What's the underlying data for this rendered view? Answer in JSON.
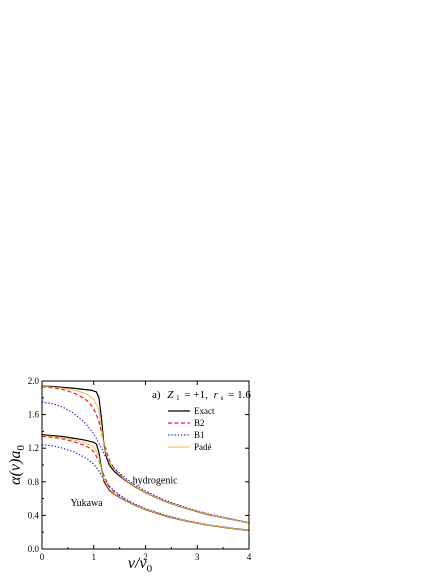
{
  "chart_data": {
    "type": "line",
    "panel_label": {
      "prefix": "a)",
      "z_symbol": "Z",
      "z_sub": "1",
      "z_value": "= +1,",
      "r_symbol": "r",
      "r_sub": "s",
      "r_value": "= 1.6"
    },
    "xlabel": {
      "main": "v/v",
      "sub": "0"
    },
    "ylabel": {
      "main": "α(v)a",
      "sub": "0"
    },
    "xlim": [
      0,
      4
    ],
    "ylim": [
      0.0,
      2.0
    ],
    "x_ticks": [
      0,
      1,
      2,
      3,
      4
    ],
    "x_tick_labels": [
      "0",
      "1",
      "2",
      "3",
      "4"
    ],
    "y_ticks": [
      0.0,
      0.4,
      0.8,
      1.2,
      1.6,
      2.0
    ],
    "y_tick_labels": [
      "0.0",
      "0.4",
      "0.8",
      "1.2",
      "1.6",
      "2.0"
    ],
    "legend": {
      "position": "right",
      "entries": [
        {
          "label": "Exact",
          "color": "#000000",
          "style": "solid"
        },
        {
          "label": "B2",
          "color": "#e8202a",
          "style": "dashed"
        },
        {
          "label": "B1",
          "color": "#2a2ad8",
          "style": "dotted"
        },
        {
          "label": "Padé",
          "color": "#e9b93c",
          "style": "solid"
        }
      ]
    },
    "annotations": [
      {
        "text": "hydrogenic",
        "x": 1.75,
        "y": 0.78
      },
      {
        "text": "Yukawa",
        "x": 0.55,
        "y": 0.51
      }
    ],
    "series": [
      {
        "group": "hydrogenic",
        "legend": "Exact",
        "color": "#000000",
        "style": "solid",
        "points": [
          [
            0,
            1.94
          ],
          [
            0.2,
            1.935
          ],
          [
            0.4,
            1.925
          ],
          [
            0.6,
            1.915
          ],
          [
            0.8,
            1.9
          ],
          [
            0.95,
            1.89
          ],
          [
            1.0,
            1.88
          ],
          [
            1.05,
            1.87
          ],
          [
            1.1,
            1.8
          ],
          [
            1.15,
            1.55
          ],
          [
            1.2,
            1.22
          ],
          [
            1.25,
            1.08
          ],
          [
            1.3,
            1.0
          ],
          [
            1.4,
            0.92
          ],
          [
            1.6,
            0.82
          ],
          [
            1.8,
            0.74
          ],
          [
            2.0,
            0.67
          ],
          [
            2.4,
            0.56
          ],
          [
            2.8,
            0.48
          ],
          [
            3.2,
            0.41
          ],
          [
            3.6,
            0.36
          ],
          [
            4.0,
            0.31
          ]
        ]
      },
      {
        "group": "hydrogenic",
        "legend": "B2",
        "color": "#e8202a",
        "style": "dashed",
        "points": [
          [
            0,
            1.93
          ],
          [
            0.2,
            1.92
          ],
          [
            0.4,
            1.9
          ],
          [
            0.6,
            1.86
          ],
          [
            0.8,
            1.8
          ],
          [
            0.9,
            1.75
          ],
          [
            1.0,
            1.67
          ],
          [
            1.1,
            1.52
          ],
          [
            1.2,
            1.25
          ],
          [
            1.3,
            1.06
          ],
          [
            1.4,
            0.95
          ],
          [
            1.6,
            0.83
          ],
          [
            1.8,
            0.745
          ],
          [
            2.0,
            0.675
          ],
          [
            2.4,
            0.565
          ],
          [
            2.8,
            0.485
          ],
          [
            3.2,
            0.415
          ],
          [
            3.6,
            0.36
          ],
          [
            4.0,
            0.31
          ]
        ]
      },
      {
        "group": "hydrogenic",
        "legend": "B1",
        "color": "#2a2ad8",
        "style": "dotted",
        "points": [
          [
            0,
            1.75
          ],
          [
            0.2,
            1.73
          ],
          [
            0.4,
            1.69
          ],
          [
            0.6,
            1.62
          ],
          [
            0.8,
            1.52
          ],
          [
            0.9,
            1.45
          ],
          [
            1.0,
            1.37
          ],
          [
            1.1,
            1.26
          ],
          [
            1.2,
            1.13
          ],
          [
            1.3,
            1.03
          ],
          [
            1.4,
            0.96
          ],
          [
            1.6,
            0.85
          ],
          [
            1.8,
            0.76
          ],
          [
            2.0,
            0.69
          ],
          [
            2.4,
            0.575
          ],
          [
            2.8,
            0.49
          ],
          [
            3.2,
            0.42
          ],
          [
            3.6,
            0.365
          ],
          [
            4.0,
            0.315
          ]
        ]
      },
      {
        "group": "hydrogenic",
        "legend": "Padé",
        "color": "#e9b93c",
        "style": "solid",
        "points": [
          [
            0,
            1.935
          ],
          [
            0.2,
            1.928
          ],
          [
            0.4,
            1.915
          ],
          [
            0.6,
            1.895
          ],
          [
            0.8,
            1.86
          ],
          [
            0.9,
            1.83
          ],
          [
            1.0,
            1.78
          ],
          [
            1.1,
            1.65
          ],
          [
            1.15,
            1.45
          ],
          [
            1.2,
            1.2
          ],
          [
            1.3,
            1.03
          ],
          [
            1.4,
            0.94
          ],
          [
            1.6,
            0.825
          ],
          [
            1.8,
            0.742
          ],
          [
            2.0,
            0.672
          ],
          [
            2.4,
            0.562
          ],
          [
            2.8,
            0.482
          ],
          [
            3.2,
            0.413
          ],
          [
            3.6,
            0.36
          ],
          [
            4.0,
            0.31
          ]
        ]
      },
      {
        "group": "Yukawa",
        "legend": "Exact",
        "color": "#000000",
        "style": "solid",
        "points": [
          [
            0,
            1.36
          ],
          [
            0.2,
            1.35
          ],
          [
            0.4,
            1.34
          ],
          [
            0.6,
            1.32
          ],
          [
            0.8,
            1.3
          ],
          [
            1.0,
            1.27
          ],
          [
            1.05,
            1.25
          ],
          [
            1.1,
            1.15
          ],
          [
            1.15,
            0.95
          ],
          [
            1.2,
            0.8
          ],
          [
            1.3,
            0.7
          ],
          [
            1.4,
            0.65
          ],
          [
            1.6,
            0.58
          ],
          [
            1.8,
            0.52
          ],
          [
            2.0,
            0.47
          ],
          [
            2.4,
            0.39
          ],
          [
            2.8,
            0.33
          ],
          [
            3.2,
            0.285
          ],
          [
            3.6,
            0.25
          ],
          [
            4.0,
            0.22
          ]
        ]
      },
      {
        "group": "Yukawa",
        "legend": "B2",
        "color": "#e8202a",
        "style": "dashed",
        "points": [
          [
            0,
            1.34
          ],
          [
            0.2,
            1.33
          ],
          [
            0.4,
            1.31
          ],
          [
            0.6,
            1.28
          ],
          [
            0.8,
            1.24
          ],
          [
            0.9,
            1.21
          ],
          [
            1.0,
            1.16
          ],
          [
            1.1,
            1.05
          ],
          [
            1.2,
            0.87
          ],
          [
            1.3,
            0.74
          ],
          [
            1.4,
            0.67
          ],
          [
            1.6,
            0.59
          ],
          [
            1.8,
            0.525
          ],
          [
            2.0,
            0.475
          ],
          [
            2.4,
            0.395
          ],
          [
            2.8,
            0.333
          ],
          [
            3.2,
            0.287
          ],
          [
            3.6,
            0.252
          ],
          [
            4.0,
            0.222
          ]
        ]
      },
      {
        "group": "Yukawa",
        "legend": "B1",
        "color": "#2a2ad8",
        "style": "dotted",
        "points": [
          [
            0,
            1.24
          ],
          [
            0.2,
            1.23
          ],
          [
            0.4,
            1.2
          ],
          [
            0.6,
            1.16
          ],
          [
            0.8,
            1.1
          ],
          [
            0.9,
            1.06
          ],
          [
            1.0,
            1.01
          ],
          [
            1.1,
            0.93
          ],
          [
            1.2,
            0.83
          ],
          [
            1.3,
            0.75
          ],
          [
            1.4,
            0.69
          ],
          [
            1.6,
            0.6
          ],
          [
            1.8,
            0.535
          ],
          [
            2.0,
            0.48
          ],
          [
            2.4,
            0.4
          ],
          [
            2.8,
            0.337
          ],
          [
            3.2,
            0.29
          ],
          [
            3.6,
            0.254
          ],
          [
            4.0,
            0.224
          ]
        ]
      },
      {
        "group": "Yukawa",
        "legend": "Padé",
        "color": "#e9b93c",
        "style": "solid",
        "points": [
          [
            0,
            1.35
          ],
          [
            0.2,
            1.34
          ],
          [
            0.4,
            1.325
          ],
          [
            0.6,
            1.3
          ],
          [
            0.8,
            1.27
          ],
          [
            1.0,
            1.22
          ],
          [
            1.1,
            1.1
          ],
          [
            1.15,
            0.93
          ],
          [
            1.2,
            0.82
          ],
          [
            1.3,
            0.71
          ],
          [
            1.4,
            0.655
          ],
          [
            1.6,
            0.583
          ],
          [
            1.8,
            0.522
          ],
          [
            2.0,
            0.472
          ],
          [
            2.4,
            0.392
          ],
          [
            2.8,
            0.331
          ],
          [
            3.2,
            0.286
          ],
          [
            3.6,
            0.251
          ],
          [
            4.0,
            0.221
          ]
        ]
      }
    ]
  }
}
